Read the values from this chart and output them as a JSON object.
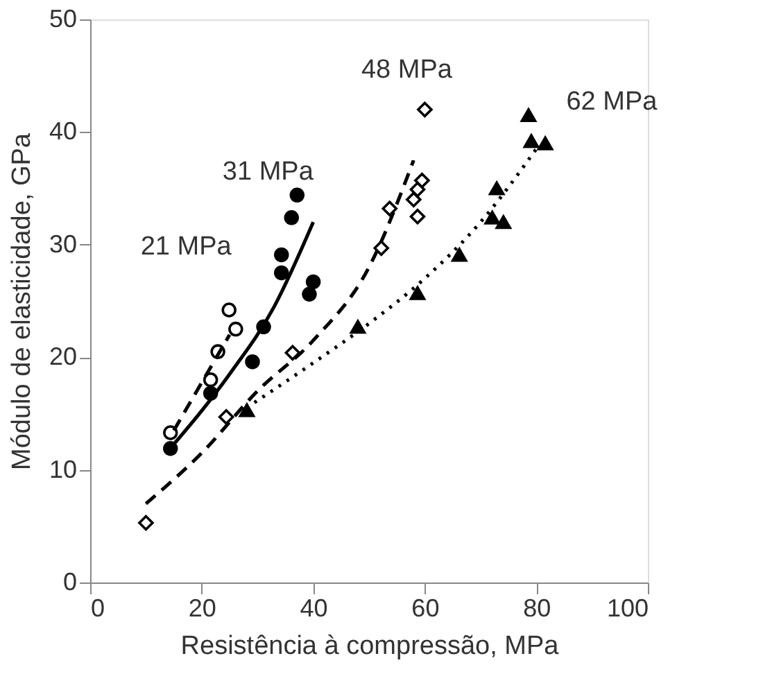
{
  "chart_data": {
    "type": "scatter",
    "xlabel": "Resistência à compressão, MPa",
    "ylabel": "Módulo de elasticidade, GPa",
    "xlim": [
      0,
      100
    ],
    "xticks": [
      0,
      20,
      40,
      60,
      80,
      100
    ],
    "ylim": [
      0,
      50
    ],
    "yticks": [
      0,
      10,
      20,
      30,
      40,
      50
    ],
    "grid": false,
    "series": [
      {
        "name": "21 MPa",
        "marker": "circle",
        "color": "#000000",
        "x": [
          14.4,
          21.6,
          22.9,
          26.1,
          24.9
        ],
        "values": [
          13.3,
          18.0,
          20.5,
          22.5,
          24.2
        ]
      },
      {
        "type": "line",
        "line_style": "dashed",
        "color": "#000000",
        "x": [
          15,
          25
        ],
        "values": [
          13.5,
          22
        ]
      },
      {
        "name": "31 MPa",
        "marker": "circle",
        "color": "#000000",
        "x": [
          14.4,
          21.6,
          29.1,
          31.1,
          34.3,
          34.3,
          36.1,
          37.1,
          39.3,
          40
        ],
        "values": [
          11.9,
          16.8,
          19.6,
          22.7,
          27.5,
          29.1,
          32.4,
          34.4,
          25.6,
          26.7
        ]
      },
      {
        "type": "line",
        "line_style": "solid",
        "color": "#000000",
        "x": [
          14,
          25,
          33,
          40
        ],
        "values": [
          11.7,
          18.5,
          24.5,
          32
        ]
      },
      {
        "name": "48 MPa",
        "marker": "diamond",
        "color": "#000000",
        "x": [
          10,
          24.4,
          36.3,
          52.2,
          53.7,
          58.7,
          58,
          58.7,
          59.5,
          60
        ],
        "values": [
          5.3,
          14.7,
          20.4,
          29.7,
          33.2,
          32.5,
          34.0,
          34.9,
          35.7,
          42.0
        ]
      },
      {
        "type": "line",
        "line_style": "dashed",
        "color": "#000000",
        "x": [
          10,
          20,
          30,
          40,
          50,
          58
        ],
        "values": [
          7,
          11.5,
          17,
          21.5,
          28,
          37.5
        ]
      },
      {
        "name": "62 MPa",
        "marker": "triangle",
        "color": "#000000",
        "x": [
          28.1,
          48,
          58.7,
          66.2,
          72.1,
          74.1,
          72.9,
          78.6,
          79.1,
          81.6
        ],
        "values": [
          15.3,
          22.7,
          25.7,
          29.1,
          32.4,
          32.0,
          35.0,
          41.5,
          39.2,
          39.0
        ]
      },
      {
        "type": "line",
        "line_style": "dotted",
        "color": "#000000",
        "x": [
          28,
          40,
          50,
          60,
          70,
          80
        ],
        "values": [
          15.5,
          19.5,
          23,
          27,
          32,
          38.5
        ]
      }
    ]
  }
}
